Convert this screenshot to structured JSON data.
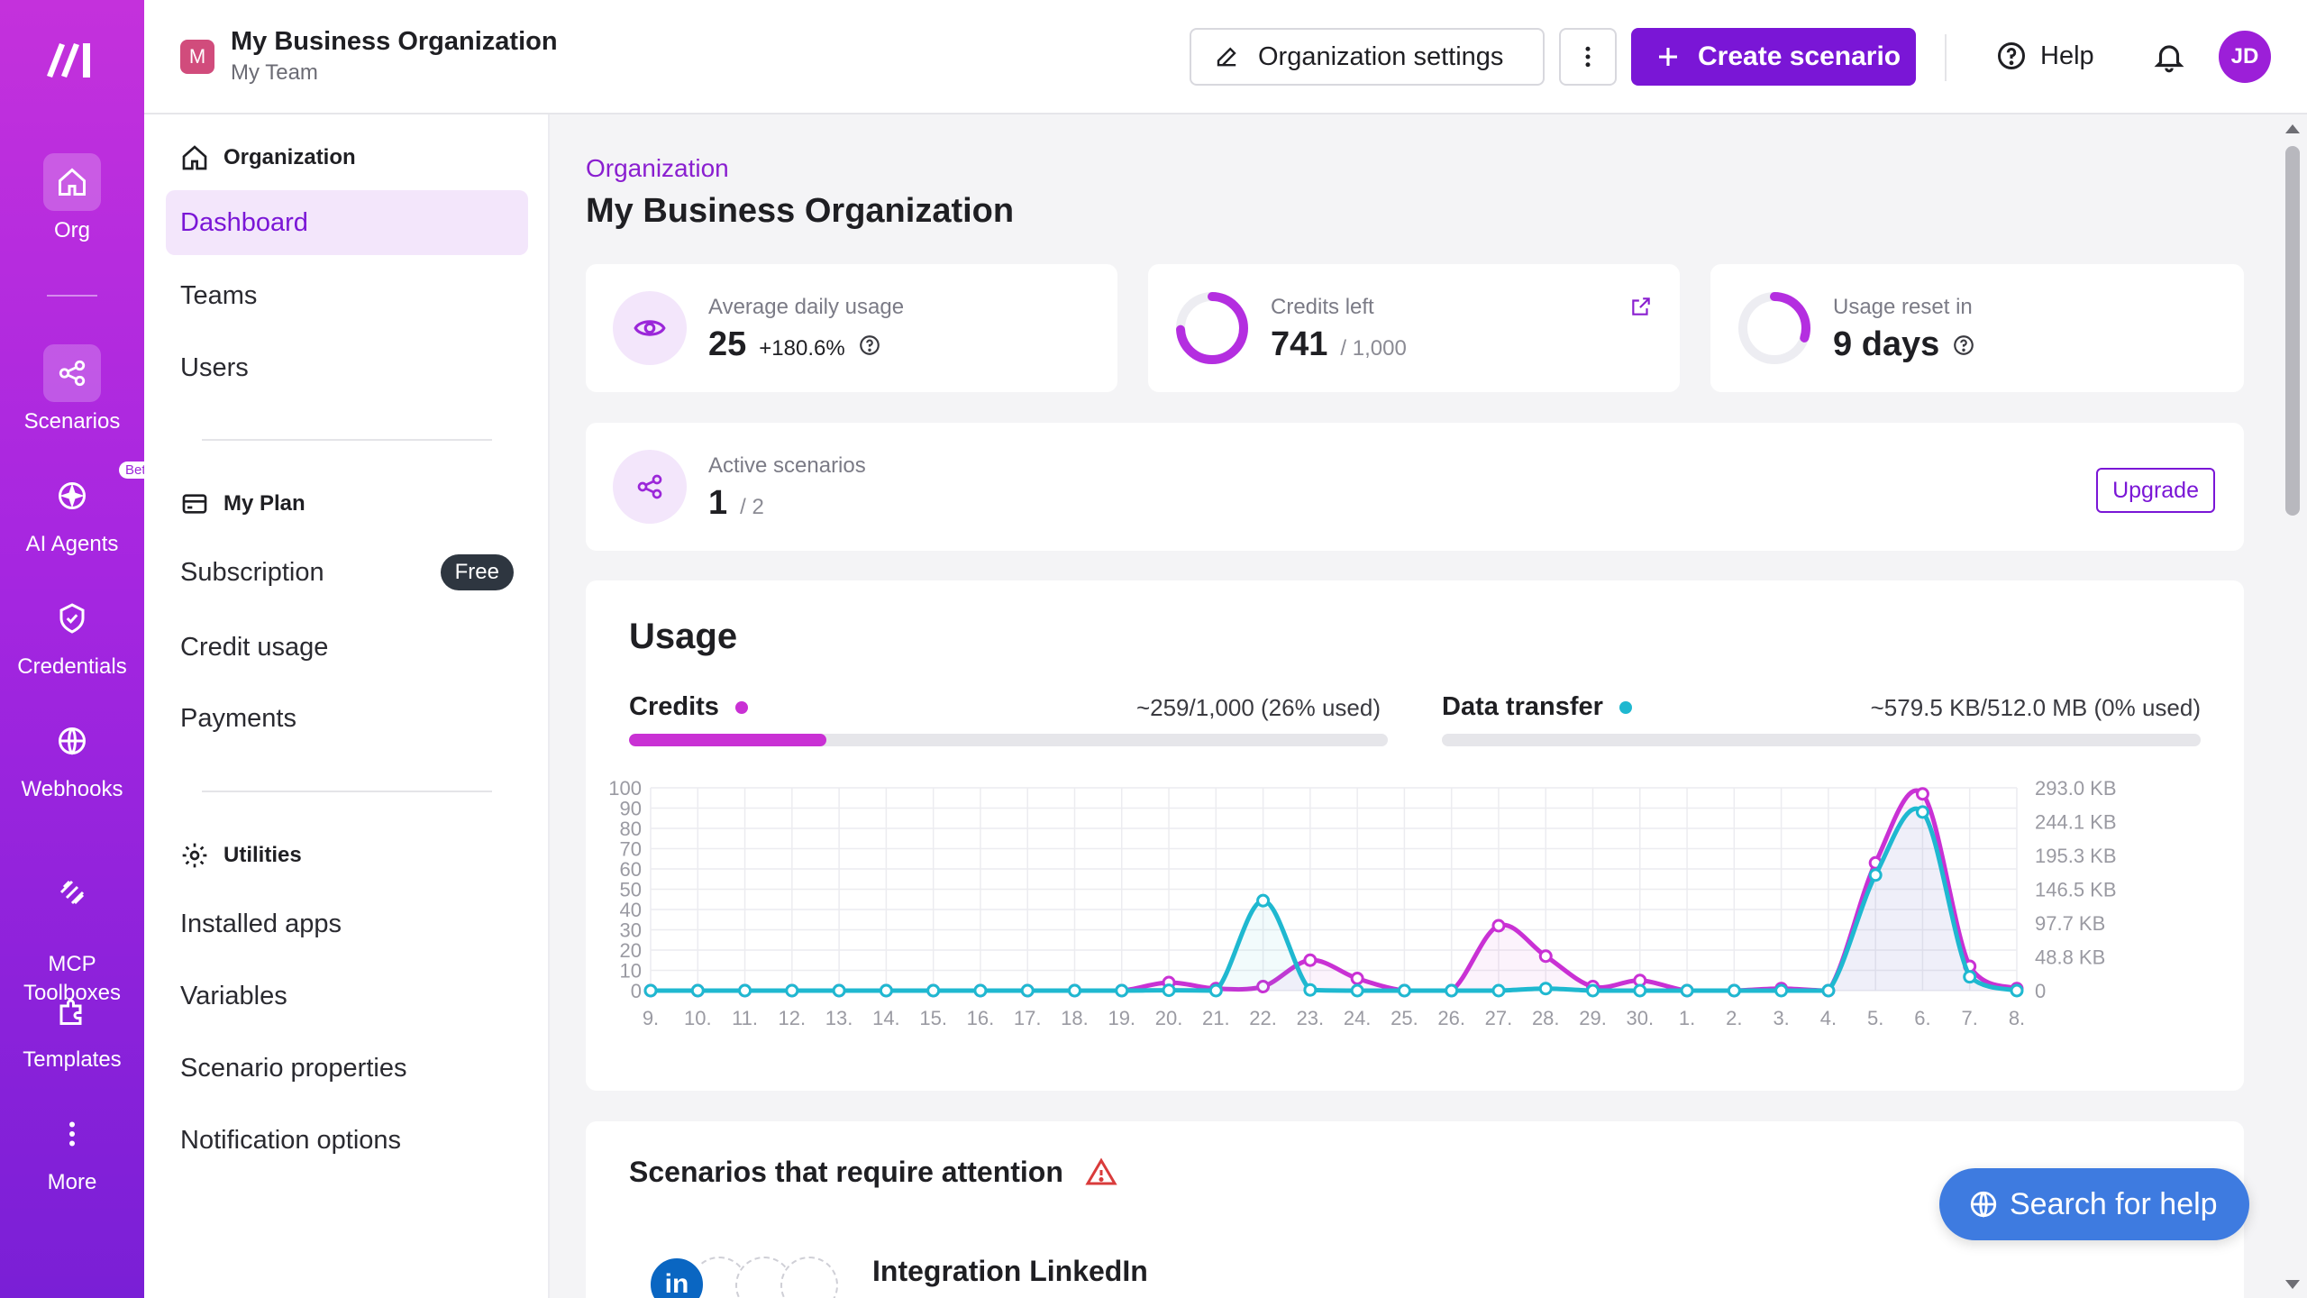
{
  "rail": {
    "items": [
      {
        "label": "Org",
        "icon": "home-icon"
      },
      {
        "label": "Scenarios",
        "icon": "share-icon"
      },
      {
        "label": "AI Agents",
        "icon": "sparkle-icon",
        "badge": "Beta"
      },
      {
        "label": "Credentials",
        "icon": "shield-check-icon"
      },
      {
        "label": "Webhooks",
        "icon": "globe-icon"
      },
      {
        "label": "MCP\nToolboxes",
        "icon": "mcp-icon"
      },
      {
        "label": "Templates",
        "icon": "puzzle-icon"
      },
      {
        "label": "More",
        "icon": "more-vertical-icon"
      }
    ]
  },
  "header": {
    "org_initial": "M",
    "org_name": "My Business Organization",
    "team": "My Team",
    "settings_label": "Organization settings",
    "create_label": "Create scenario",
    "help_label": "Help",
    "user_initials": "JD"
  },
  "sidenav": {
    "section_org": "Organization",
    "org_items": [
      "Dashboard",
      "Teams",
      "Users"
    ],
    "section_plan": "My Plan",
    "plan_items": [
      "Subscription",
      "Credit usage",
      "Payments"
    ],
    "plan_badge": "Free",
    "section_util": "Utilities",
    "util_items": [
      "Installed apps",
      "Variables",
      "Scenario properties",
      "Notification options"
    ]
  },
  "main": {
    "breadcrumb": "Organization",
    "title": "My Business Organization",
    "stats": {
      "avg_label": "Average daily usage",
      "avg_value": "25",
      "avg_change": "+180.6%",
      "credits_label": "Credits left",
      "credits_value": "741",
      "credits_total": "/ 1,000",
      "credits_fraction": 0.741,
      "reset_label": "Usage reset in",
      "reset_value": "9 days",
      "reset_fraction": 0.3
    },
    "active": {
      "label": "Active scenarios",
      "value": "1",
      "total": "/ 2",
      "upgrade_label": "Upgrade"
    },
    "usage": {
      "title": "Usage",
      "credits_label": "Credits",
      "credits_summary": "~259/1,000 (26% used)",
      "credits_fraction": 0.26,
      "transfer_label": "Data transfer",
      "transfer_summary": "~579.5 KB/512.0 MB (0% used)",
      "transfer_fraction": 0.0,
      "credits_color": "#c931d4",
      "transfer_color": "#1fb8d0"
    },
    "attention": {
      "title": "Scenarios that require attention",
      "item_name": "Integration LinkedIn",
      "item_icon_text": "in"
    },
    "search_help_label": "Search for help"
  },
  "chart_data": {
    "type": "line",
    "categories": [
      "9.",
      "10.",
      "11.",
      "12.",
      "13.",
      "14.",
      "15.",
      "16.",
      "17.",
      "18.",
      "19.",
      "20.",
      "21.",
      "22.",
      "23.",
      "24.",
      "25.",
      "26.",
      "27.",
      "28.",
      "29.",
      "30.",
      "1.",
      "2.",
      "3.",
      "4.",
      "5.",
      "6.",
      "7.",
      "8."
    ],
    "left_axis": {
      "ticks": [
        "100",
        "90",
        "80",
        "70",
        "60",
        "50",
        "40",
        "30",
        "20",
        "10",
        "0"
      ],
      "ylim": [
        0,
        100
      ]
    },
    "right_axis": {
      "ticks": [
        "293.0 KB",
        "244.1 KB",
        "195.3 KB",
        "146.5 KB",
        "97.7 KB",
        "48.8 KB",
        "0"
      ],
      "ylim": [
        0,
        293.0
      ]
    },
    "series": [
      {
        "name": "Credits",
        "axis": "left",
        "color": "#c931d4",
        "values": [
          0,
          0,
          0,
          0,
          0,
          0,
          0,
          0,
          0,
          0,
          0,
          4,
          1,
          2,
          15,
          6,
          0,
          0,
          32,
          17,
          2,
          5,
          0,
          0,
          1,
          0,
          63,
          97,
          12,
          1
        ]
      },
      {
        "name": "Data transfer",
        "axis": "right",
        "color": "#1fb8d0",
        "values": [
          0,
          0,
          0,
          0,
          0,
          0,
          0,
          0,
          0,
          0,
          0,
          0.5,
          0,
          130,
          1,
          0,
          0,
          0,
          0,
          3,
          0,
          0,
          0,
          0,
          0,
          0,
          167,
          258,
          20,
          0
        ]
      }
    ],
    "grid": true,
    "legend": "none"
  }
}
